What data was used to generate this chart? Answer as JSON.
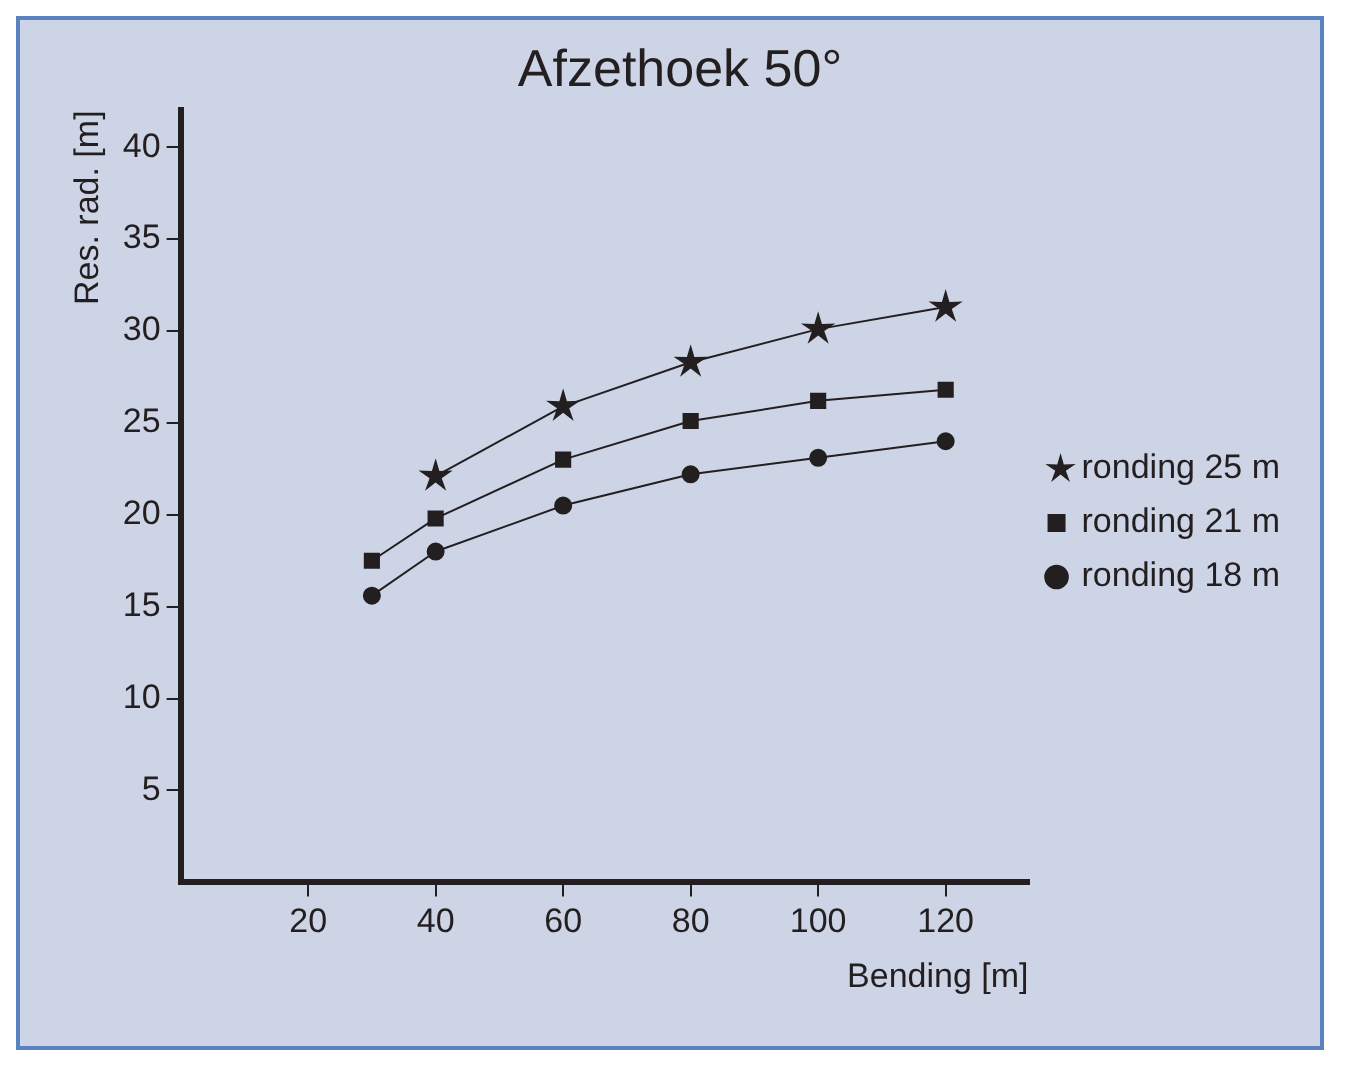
{
  "chart_data": {
    "type": "line",
    "title": "Afzethoek 50°",
    "xlabel": "Bending [m]",
    "ylabel": "Res. rad. [m]",
    "xlim": [
      0,
      133
    ],
    "xticks": [
      20,
      40,
      60,
      80,
      100,
      120
    ],
    "ylim": [
      0,
      42
    ],
    "yticks": [
      5,
      10,
      15,
      20,
      25,
      30,
      35,
      40
    ],
    "grid": false,
    "legend": "right",
    "line_style": "solid",
    "series": [
      {
        "name": "ronding 25 m",
        "color": "#231f20",
        "marker": "star",
        "x": [
          40,
          60,
          80,
          100,
          120
        ],
        "values": [
          22.1,
          25.9,
          28.3,
          30.1,
          31.3
        ]
      },
      {
        "name": "ronding 21 m",
        "color": "#231f20",
        "marker": "square",
        "x": [
          30,
          40,
          60,
          80,
          100,
          120
        ],
        "values": [
          17.5,
          19.8,
          23.0,
          25.1,
          26.2,
          26.8
        ]
      },
      {
        "name": "ronding 18 m",
        "color": "#231f20",
        "marker": "circle",
        "x": [
          30,
          40,
          60,
          80,
          100,
          120
        ],
        "values": [
          15.6,
          18.0,
          20.5,
          22.2,
          23.1,
          24.0
        ]
      }
    ]
  }
}
